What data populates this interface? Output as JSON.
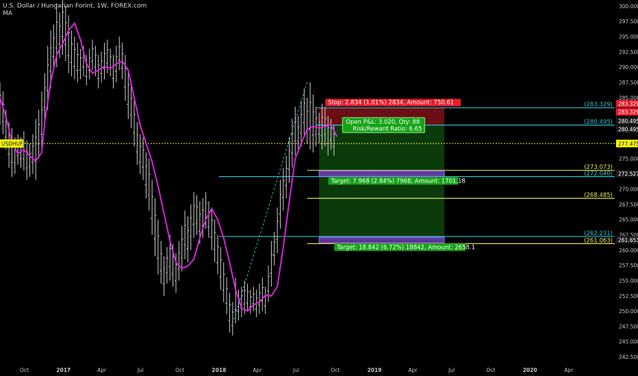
{
  "header": {
    "title": "U.S. Dollar / Hungarian Forint, 1W, FOREX.com",
    "indicator": "MA"
  },
  "colors": {
    "background": "#000000",
    "ma_line": "#e020e0",
    "price_bars": "#d0d0d0",
    "last_price_line": "#ffff00",
    "cyan_levels": "#33c3d4",
    "yellow_levels": "#e6e64d",
    "stop_zone": "#6b0f14",
    "profit_zone": "#0b3a0b",
    "target_box": "#7a3fd0",
    "stop_label": "#e81c2c",
    "target_label": "#16a316",
    "axis_text": "#c8c8c8"
  },
  "chart_data": {
    "type": "ohlc",
    "symbol_label": "USDHUF",
    "last_price": 277.475,
    "ylim": [
      242.5,
      301
    ],
    "y_ticks": [
      "300.000",
      "297.500",
      "295.000",
      "292.500",
      "290.000",
      "287.500",
      "285.000",
      "282.500",
      "280.000",
      "277.500",
      "275.000",
      "272.500",
      "270.000",
      "267.500",
      "265.000",
      "262.500",
      "260.000",
      "257.500",
      "255.000",
      "252.500",
      "250.000",
      "247.500",
      "245.000",
      "242.500"
    ],
    "x_ticks": [
      "Oct",
      "2017",
      "Apr",
      "Jul",
      "Oct",
      "2018",
      "Apr",
      "Jul",
      "Oct",
      "2019",
      "Apr",
      "Jul",
      "Oct",
      "2020",
      "Apr"
    ],
    "x_tick_dates": [
      "2016-10-01",
      "2017-01-01",
      "2017-04-01",
      "2017-07-01",
      "2017-10-01",
      "2018-01-01",
      "2018-04-01",
      "2018-07-01",
      "2018-10-01",
      "2019-01-01",
      "2019-04-01",
      "2019-07-01",
      "2019-10-01",
      "2020-01-01",
      "2020-04-01"
    ],
    "xlim": [
      "2016-08-05",
      "2020-07-18"
    ],
    "series": [
      {
        "name": "MA",
        "points": [
          [
            "2016-08-05",
            285.0
          ],
          [
            "2016-08-19",
            281.8
          ],
          [
            "2016-09-02",
            277.7
          ],
          [
            "2016-09-16",
            275.8
          ],
          [
            "2016-09-30",
            276.5
          ],
          [
            "2016-10-14",
            275.4
          ],
          [
            "2016-10-28",
            274.6
          ],
          [
            "2016-11-11",
            276.0
          ],
          [
            "2016-11-18",
            281.0
          ],
          [
            "2016-12-02",
            287.5
          ],
          [
            "2016-12-16",
            292.0
          ],
          [
            "2016-12-30",
            293.8
          ],
          [
            "2017-01-13",
            296.0
          ],
          [
            "2017-01-27",
            297.2
          ],
          [
            "2017-02-10",
            294.5
          ],
          [
            "2017-02-24",
            290.5
          ],
          [
            "2017-03-10",
            289.0
          ],
          [
            "2017-03-24",
            289.5
          ],
          [
            "2017-04-07",
            290.1
          ],
          [
            "2017-04-21",
            289.8
          ],
          [
            "2017-05-05",
            290.5
          ],
          [
            "2017-05-19",
            291.0
          ],
          [
            "2017-06-02",
            289.5
          ],
          [
            "2017-06-16",
            285.0
          ],
          [
            "2017-06-30",
            280.5
          ],
          [
            "2017-07-14",
            277.5
          ],
          [
            "2017-07-28",
            274.5
          ],
          [
            "2017-08-11",
            270.5
          ],
          [
            "2017-08-25",
            266.0
          ],
          [
            "2017-09-08",
            261.5
          ],
          [
            "2017-09-22",
            258.0
          ],
          [
            "2017-10-06",
            257.0
          ],
          [
            "2017-10-20",
            257.4
          ],
          [
            "2017-11-03",
            258.5
          ],
          [
            "2017-11-17",
            262.0
          ],
          [
            "2017-12-01",
            265.0
          ],
          [
            "2017-12-15",
            266.8
          ],
          [
            "2017-12-29",
            265.0
          ],
          [
            "2018-01-12",
            262.0
          ],
          [
            "2018-01-26",
            258.0
          ],
          [
            "2018-02-09",
            253.5
          ],
          [
            "2018-02-23",
            250.5
          ],
          [
            "2018-03-09",
            250.0
          ],
          [
            "2018-03-23",
            251.0
          ],
          [
            "2018-04-06",
            251.5
          ],
          [
            "2018-04-20",
            252.6
          ],
          [
            "2018-05-04",
            252.5
          ],
          [
            "2018-05-18",
            254.0
          ],
          [
            "2018-06-01",
            260.5
          ],
          [
            "2018-06-15",
            268.0
          ],
          [
            "2018-06-29",
            275.0
          ],
          [
            "2018-07-13",
            277.5
          ],
          [
            "2018-07-27",
            279.8
          ],
          [
            "2018-08-10",
            280.3
          ],
          [
            "2018-08-24",
            280.0
          ],
          [
            "2018-09-07",
            280.3
          ],
          [
            "2018-09-21",
            280.5
          ],
          [
            "2018-10-05",
            278.6
          ]
        ]
      }
    ],
    "position": {
      "entry": 280.495,
      "stop": 283.329,
      "stop_label": "Stop: 2.834 (1.01%) 2834, Amount: 750.61",
      "pnl_label": "Open P&L: 3.020, Qty: 88",
      "rr_label": "Risk/Reward Ratio: 6.65",
      "target1": 272.527,
      "target1_label": "Target: 7.968 (2.84%) 7968, Amount: 1701.18",
      "target2": 261.653,
      "target2_label": "Target: 18.842 (6.72%) 18842, Amount: 2658.1",
      "start_date": "2018-08-24",
      "end_date": "2019-06-14"
    },
    "horizontal_levels": [
      {
        "value": 283.329,
        "label": "(283.329)",
        "color": "cyan",
        "from": "2018-08-17"
      },
      {
        "value": 280.495,
        "label": "(280.495)",
        "color": "cyan",
        "from": "2018-08-17"
      },
      {
        "value": 273.073,
        "label": "(273.073)",
        "color": "yellow",
        "from": "2018-07-27"
      },
      {
        "value": 272.04,
        "label": "(272.040)",
        "color": "cyan",
        "from": "2018-01-01"
      },
      {
        "value": 268.485,
        "label": "(268.485)",
        "color": "yellow",
        "from": "2018-07-27"
      },
      {
        "value": 262.231,
        "label": "(262.231)",
        "color": "cyan",
        "from": "2018-01-01"
      },
      {
        "value": 261.063,
        "label": "(261.063)",
        "color": "yellow",
        "from": "2018-07-27"
      }
    ],
    "price_tags": [
      {
        "value": 283.329,
        "label": "283.329",
        "color": "red"
      },
      {
        "value": 283.329,
        "label": "283.329",
        "color": "red"
      },
      {
        "value": 280.495,
        "label": "280.495",
        "color": "dark"
      },
      {
        "value": 280.495,
        "label": "280.495",
        "color": "dark"
      },
      {
        "value": 277.475,
        "label": "277.475",
        "color": "yellow"
      },
      {
        "value": 272.527,
        "label": "272.527",
        "color": "dark"
      },
      {
        "value": 261.653,
        "label": "261.653",
        "color": "dark"
      }
    ],
    "bars": [
      {
        "d": "2016-08-05",
        "h": 287.5,
        "l": 280.5
      },
      {
        "d": "2016-08-12",
        "h": 286.0,
        "l": 279.0
      },
      {
        "d": "2016-08-19",
        "h": 283.0,
        "l": 276.5
      },
      {
        "d": "2016-08-26",
        "h": 281.0,
        "l": 273.5
      },
      {
        "d": "2016-09-02",
        "h": 280.0,
        "l": 272.0
      },
      {
        "d": "2016-09-09",
        "h": 278.5,
        "l": 272.5
      },
      {
        "d": "2016-09-16",
        "h": 279.0,
        "l": 274.0
      },
      {
        "d": "2016-09-23",
        "h": 278.5,
        "l": 273.5
      },
      {
        "d": "2016-09-30",
        "h": 279.5,
        "l": 273.0
      },
      {
        "d": "2016-10-07",
        "h": 278.0,
        "l": 271.5
      },
      {
        "d": "2016-10-14",
        "h": 277.5,
        "l": 272.0
      },
      {
        "d": "2016-10-21",
        "h": 279.0,
        "l": 272.5
      },
      {
        "d": "2016-10-28",
        "h": 281.5,
        "l": 271.5
      },
      {
        "d": "2016-11-04",
        "h": 283.0,
        "l": 275.0
      },
      {
        "d": "2016-11-11",
        "h": 286.0,
        "l": 276.0
      },
      {
        "d": "2016-11-18",
        "h": 289.0,
        "l": 281.0
      },
      {
        "d": "2016-11-25",
        "h": 293.5,
        "l": 283.0
      },
      {
        "d": "2016-12-02",
        "h": 296.0,
        "l": 286.5
      },
      {
        "d": "2016-12-09",
        "h": 297.0,
        "l": 289.5
      },
      {
        "d": "2016-12-16",
        "h": 300.5,
        "l": 290.0
      },
      {
        "d": "2016-12-23",
        "h": 299.0,
        "l": 291.5
      },
      {
        "d": "2016-12-30",
        "h": 302.0,
        "l": 292.0
      },
      {
        "d": "2017-01-06",
        "h": 300.0,
        "l": 291.0
      },
      {
        "d": "2017-01-13",
        "h": 298.5,
        "l": 289.0
      },
      {
        "d": "2017-01-20",
        "h": 296.0,
        "l": 288.5
      },
      {
        "d": "2017-01-27",
        "h": 295.0,
        "l": 288.0
      },
      {
        "d": "2017-02-03",
        "h": 294.0,
        "l": 287.5
      },
      {
        "d": "2017-02-10",
        "h": 293.0,
        "l": 288.0
      },
      {
        "d": "2017-02-17",
        "h": 293.5,
        "l": 288.5
      },
      {
        "d": "2017-02-24",
        "h": 292.0,
        "l": 287.0
      },
      {
        "d": "2017-03-03",
        "h": 293.0,
        "l": 288.0
      },
      {
        "d": "2017-03-10",
        "h": 294.5,
        "l": 289.5
      },
      {
        "d": "2017-03-17",
        "h": 293.5,
        "l": 288.5
      },
      {
        "d": "2017-03-24",
        "h": 292.0,
        "l": 286.5
      },
      {
        "d": "2017-03-31",
        "h": 292.5,
        "l": 287.5
      },
      {
        "d": "2017-04-07",
        "h": 294.0,
        "l": 288.0
      },
      {
        "d": "2017-04-14",
        "h": 294.5,
        "l": 289.0
      },
      {
        "d": "2017-04-21",
        "h": 293.0,
        "l": 288.5
      },
      {
        "d": "2017-04-28",
        "h": 292.0,
        "l": 286.5
      },
      {
        "d": "2017-05-05",
        "h": 293.5,
        "l": 287.5
      },
      {
        "d": "2017-05-12",
        "h": 295.0,
        "l": 289.5
      },
      {
        "d": "2017-05-19",
        "h": 294.0,
        "l": 288.0
      },
      {
        "d": "2017-05-26",
        "h": 292.0,
        "l": 284.5
      },
      {
        "d": "2017-06-02",
        "h": 289.5,
        "l": 281.5
      },
      {
        "d": "2017-06-09",
        "h": 287.0,
        "l": 280.0
      },
      {
        "d": "2017-06-16",
        "h": 284.5,
        "l": 277.0
      },
      {
        "d": "2017-06-23",
        "h": 281.0,
        "l": 274.0
      },
      {
        "d": "2017-06-30",
        "h": 279.0,
        "l": 272.5
      },
      {
        "d": "2017-07-07",
        "h": 278.5,
        "l": 271.5
      },
      {
        "d": "2017-07-14",
        "h": 276.0,
        "l": 268.5
      },
      {
        "d": "2017-07-21",
        "h": 275.0,
        "l": 266.5
      },
      {
        "d": "2017-07-28",
        "h": 271.5,
        "l": 262.5
      },
      {
        "d": "2017-08-04",
        "h": 268.5,
        "l": 259.0
      },
      {
        "d": "2017-08-11",
        "h": 265.0,
        "l": 256.0
      },
      {
        "d": "2017-08-18",
        "h": 261.5,
        "l": 254.5
      },
      {
        "d": "2017-08-25",
        "h": 259.0,
        "l": 252.5
      },
      {
        "d": "2017-09-01",
        "h": 260.5,
        "l": 254.5
      },
      {
        "d": "2017-09-08",
        "h": 262.5,
        "l": 255.0
      },
      {
        "d": "2017-09-15",
        "h": 261.0,
        "l": 254.0
      },
      {
        "d": "2017-09-22",
        "h": 259.5,
        "l": 253.0
      },
      {
        "d": "2017-09-29",
        "h": 261.5,
        "l": 255.0
      },
      {
        "d": "2017-10-06",
        "h": 264.0,
        "l": 256.5
      },
      {
        "d": "2017-10-13",
        "h": 266.5,
        "l": 258.5
      },
      {
        "d": "2017-10-20",
        "h": 265.5,
        "l": 258.0
      },
      {
        "d": "2017-10-27",
        "h": 267.5,
        "l": 260.0
      },
      {
        "d": "2017-11-03",
        "h": 269.5,
        "l": 262.0
      },
      {
        "d": "2017-11-10",
        "h": 269.0,
        "l": 262.5
      },
      {
        "d": "2017-11-17",
        "h": 268.0,
        "l": 261.0
      },
      {
        "d": "2017-11-24",
        "h": 268.5,
        "l": 262.0
      },
      {
        "d": "2017-12-01",
        "h": 269.5,
        "l": 263.5
      },
      {
        "d": "2017-12-08",
        "h": 268.0,
        "l": 262.0
      },
      {
        "d": "2017-12-15",
        "h": 267.0,
        "l": 260.0
      },
      {
        "d": "2017-12-22",
        "h": 265.0,
        "l": 258.0
      },
      {
        "d": "2017-12-29",
        "h": 262.5,
        "l": 256.0
      },
      {
        "d": "2018-01-05",
        "h": 260.5,
        "l": 253.5
      },
      {
        "d": "2018-01-12",
        "h": 258.0,
        "l": 251.5
      },
      {
        "d": "2018-01-19",
        "h": 255.5,
        "l": 249.5
      },
      {
        "d": "2018-01-26",
        "h": 253.0,
        "l": 246.5
      },
      {
        "d": "2018-02-02",
        "h": 251.5,
        "l": 246.0
      },
      {
        "d": "2018-02-09",
        "h": 255.5,
        "l": 248.0
      },
      {
        "d": "2018-02-16",
        "h": 253.5,
        "l": 248.5
      },
      {
        "d": "2018-02-23",
        "h": 254.0,
        "l": 249.0
      },
      {
        "d": "2018-03-02",
        "h": 255.0,
        "l": 249.5
      },
      {
        "d": "2018-03-09",
        "h": 254.5,
        "l": 250.0
      },
      {
        "d": "2018-03-16",
        "h": 253.5,
        "l": 249.5
      },
      {
        "d": "2018-03-23",
        "h": 254.0,
        "l": 250.0
      },
      {
        "d": "2018-03-30",
        "h": 253.5,
        "l": 249.0
      },
      {
        "d": "2018-04-06",
        "h": 254.5,
        "l": 249.5
      },
      {
        "d": "2018-04-13",
        "h": 255.5,
        "l": 250.0
      },
      {
        "d": "2018-04-20",
        "h": 254.0,
        "l": 249.5
      },
      {
        "d": "2018-04-27",
        "h": 257.5,
        "l": 251.5
      },
      {
        "d": "2018-05-04",
        "h": 261.5,
        "l": 254.0
      },
      {
        "d": "2018-05-11",
        "h": 263.0,
        "l": 257.5
      },
      {
        "d": "2018-05-18",
        "h": 267.0,
        "l": 259.5
      },
      {
        "d": "2018-05-25",
        "h": 271.5,
        "l": 263.5
      },
      {
        "d": "2018-06-01",
        "h": 273.5,
        "l": 266.5
      },
      {
        "d": "2018-06-08",
        "h": 275.5,
        "l": 268.5
      },
      {
        "d": "2018-06-15",
        "h": 278.5,
        "l": 271.0
      },
      {
        "d": "2018-06-22",
        "h": 281.5,
        "l": 273.5
      },
      {
        "d": "2018-06-29",
        "h": 283.5,
        "l": 275.5
      },
      {
        "d": "2018-07-06",
        "h": 282.0,
        "l": 276.0
      },
      {
        "d": "2018-07-13",
        "h": 284.5,
        "l": 277.0
      },
      {
        "d": "2018-07-20",
        "h": 286.5,
        "l": 278.5
      },
      {
        "d": "2018-07-27",
        "h": 285.0,
        "l": 277.5
      },
      {
        "d": "2018-08-03",
        "h": 287.5,
        "l": 276.5
      },
      {
        "d": "2018-08-10",
        "h": 285.5,
        "l": 276.0
      },
      {
        "d": "2018-08-17",
        "h": 283.5,
        "l": 277.0
      },
      {
        "d": "2018-08-24",
        "h": 282.5,
        "l": 277.5
      },
      {
        "d": "2018-08-31",
        "h": 284.0,
        "l": 276.5
      },
      {
        "d": "2018-09-07",
        "h": 283.5,
        "l": 277.0
      },
      {
        "d": "2018-09-14",
        "h": 282.0,
        "l": 275.5
      },
      {
        "d": "2018-09-21",
        "h": 281.5,
        "l": 276.5
      },
      {
        "d": "2018-09-28",
        "h": 280.5,
        "l": 275.5
      }
    ]
  }
}
